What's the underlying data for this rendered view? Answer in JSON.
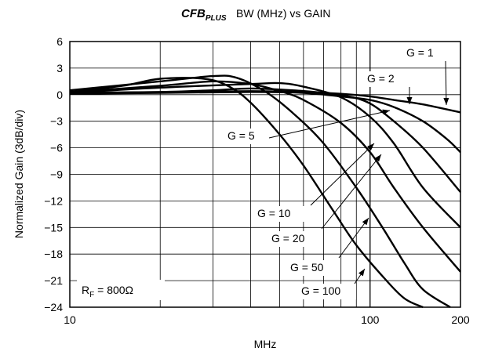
{
  "chart_data": {
    "type": "line",
    "title": "BW (MHz) vs GAIN",
    "logo": {
      "main": "CFB",
      "sub": "PLUS"
    },
    "xlabel": "MHz",
    "ylabel": "Normalized Gain (3dB/div)",
    "x_scale": "log",
    "xlim": [
      10,
      200
    ],
    "ylim": [
      -24,
      6
    ],
    "x_ticks": [
      10,
      100,
      200
    ],
    "x_tick_labels": [
      "10",
      "100",
      "200"
    ],
    "y_ticks": [
      6,
      3,
      0,
      -3,
      -6,
      -9,
      -12,
      -15,
      -18,
      -21,
      -24
    ],
    "y_tick_labels": [
      "6",
      "3",
      "0",
      "−3",
      "−6",
      "−9",
      "−12",
      "−15",
      "−18",
      "−21",
      "−24"
    ],
    "grid": true,
    "annotation": {
      "prefix": "R",
      "subscript": "F",
      "suffix": " = 800Ω"
    },
    "series": [
      {
        "name": "G = 1",
        "x": [
          10,
          20,
          40,
          60,
          80,
          100,
          120,
          150,
          200
        ],
        "y": [
          0.2,
          0.3,
          0.4,
          0.3,
          0.1,
          -0.2,
          -0.6,
          -1.1,
          -2.0
        ]
      },
      {
        "name": "G = 2",
        "x": [
          10,
          20,
          40,
          60,
          80,
          100,
          120,
          150,
          180,
          200
        ],
        "y": [
          0.1,
          0.2,
          0.3,
          0.2,
          -0.2,
          -0.6,
          -1.4,
          -3.0,
          -5.0,
          -6.5
        ]
      },
      {
        "name": "G = 5",
        "x": [
          10,
          20,
          30,
          40,
          55,
          70,
          85,
          100,
          120,
          150,
          200
        ],
        "y": [
          0.2,
          0.3,
          0.5,
          0.7,
          0.5,
          0.2,
          -0.2,
          -1.0,
          -3.0,
          -6.0,
          -11.0
        ]
      },
      {
        "name": "G = 10",
        "x": [
          10,
          20,
          40,
          50,
          60,
          80,
          100,
          120,
          150,
          200
        ],
        "y": [
          0.2,
          0.8,
          1.2,
          1.3,
          0.9,
          -0.3,
          -2.5,
          -5.5,
          -10.5,
          -15.0
        ]
      },
      {
        "name": "G = 20",
        "x": [
          10,
          20,
          30,
          40,
          50,
          60,
          80,
          100,
          120,
          150,
          200
        ],
        "y": [
          0.3,
          1.0,
          1.5,
          1.2,
          0.4,
          -0.6,
          -3.2,
          -6.5,
          -10.5,
          -15.0,
          -20.0
        ]
      },
      {
        "name": "G = 50",
        "x": [
          10,
          20,
          30,
          36,
          45,
          55,
          70,
          90,
          110,
          130,
          150,
          185
        ],
        "y": [
          0.5,
          1.5,
          2.1,
          1.9,
          0.3,
          -2.0,
          -5.5,
          -10.5,
          -15.0,
          -19.0,
          -22.0,
          -24.0
        ]
      },
      {
        "name": "G = 100",
        "x": [
          10,
          15,
          20,
          28,
          34,
          40,
          50,
          60,
          75,
          90,
          110,
          130,
          150
        ],
        "y": [
          0.3,
          1.0,
          1.8,
          1.8,
          0.9,
          -0.9,
          -4.5,
          -8.0,
          -13.0,
          -17.0,
          -20.5,
          -23.0,
          -24.0
        ]
      }
    ],
    "labels": [
      "G = 1",
      "G = 2",
      "G = 5",
      "G = 10",
      "G = 20",
      "G = 50",
      "G = 100"
    ]
  }
}
